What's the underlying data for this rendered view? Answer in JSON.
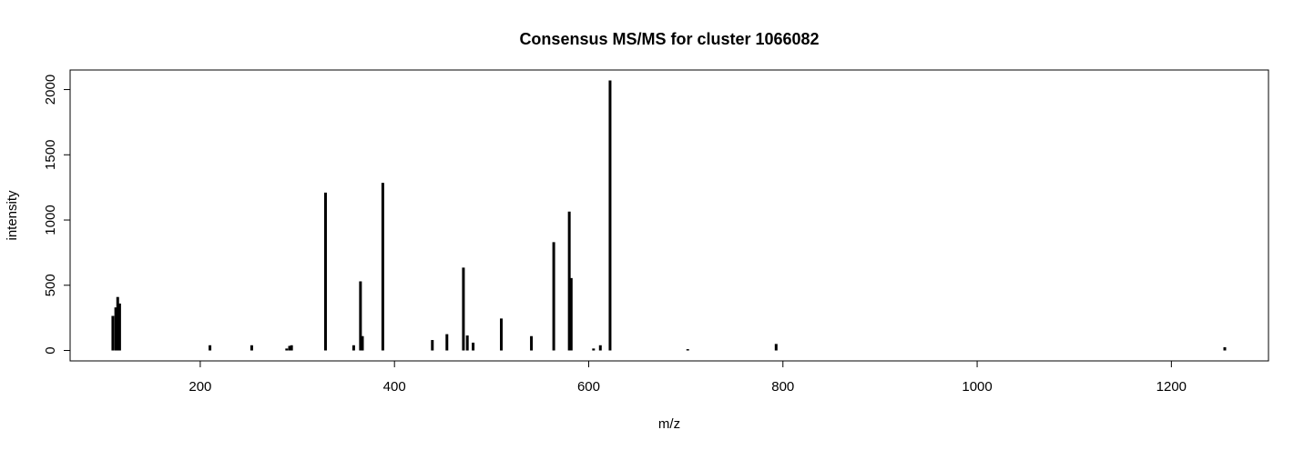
{
  "chart_data": {
    "type": "bar",
    "title": "Consensus MS/MS for cluster 1066082",
    "xlabel": "m/z",
    "ylabel": "intensity",
    "xlim": [
      66,
      1300
    ],
    "ylim": [
      -80,
      2150
    ],
    "xticks": [
      200,
      400,
      600,
      800,
      1000,
      1200
    ],
    "yticks": [
      0,
      500,
      1000,
      1500,
      2000
    ],
    "grid": false,
    "legend": "none",
    "color": "#000000",
    "peaks": [
      {
        "mz": 110,
        "intensity": 265
      },
      {
        "mz": 113,
        "intensity": 330
      },
      {
        "mz": 115,
        "intensity": 410
      },
      {
        "mz": 117,
        "intensity": 360
      },
      {
        "mz": 210,
        "intensity": 40
      },
      {
        "mz": 253,
        "intensity": 40
      },
      {
        "mz": 289,
        "intensity": 15
      },
      {
        "mz": 292,
        "intensity": 35
      },
      {
        "mz": 294,
        "intensity": 40
      },
      {
        "mz": 329,
        "intensity": 1210
      },
      {
        "mz": 358,
        "intensity": 40
      },
      {
        "mz": 365,
        "intensity": 530
      },
      {
        "mz": 367,
        "intensity": 110
      },
      {
        "mz": 388,
        "intensity": 1285
      },
      {
        "mz": 439,
        "intensity": 80
      },
      {
        "mz": 454,
        "intensity": 125
      },
      {
        "mz": 471,
        "intensity": 635
      },
      {
        "mz": 475,
        "intensity": 115
      },
      {
        "mz": 481,
        "intensity": 60
      },
      {
        "mz": 510,
        "intensity": 245
      },
      {
        "mz": 541,
        "intensity": 110
      },
      {
        "mz": 564,
        "intensity": 830
      },
      {
        "mz": 580,
        "intensity": 1065
      },
      {
        "mz": 582,
        "intensity": 555
      },
      {
        "mz": 605,
        "intensity": 15
      },
      {
        "mz": 612,
        "intensity": 40
      },
      {
        "mz": 622,
        "intensity": 2070
      },
      {
        "mz": 702,
        "intensity": 10
      },
      {
        "mz": 793,
        "intensity": 50
      },
      {
        "mz": 1255,
        "intensity": 25
      }
    ]
  }
}
